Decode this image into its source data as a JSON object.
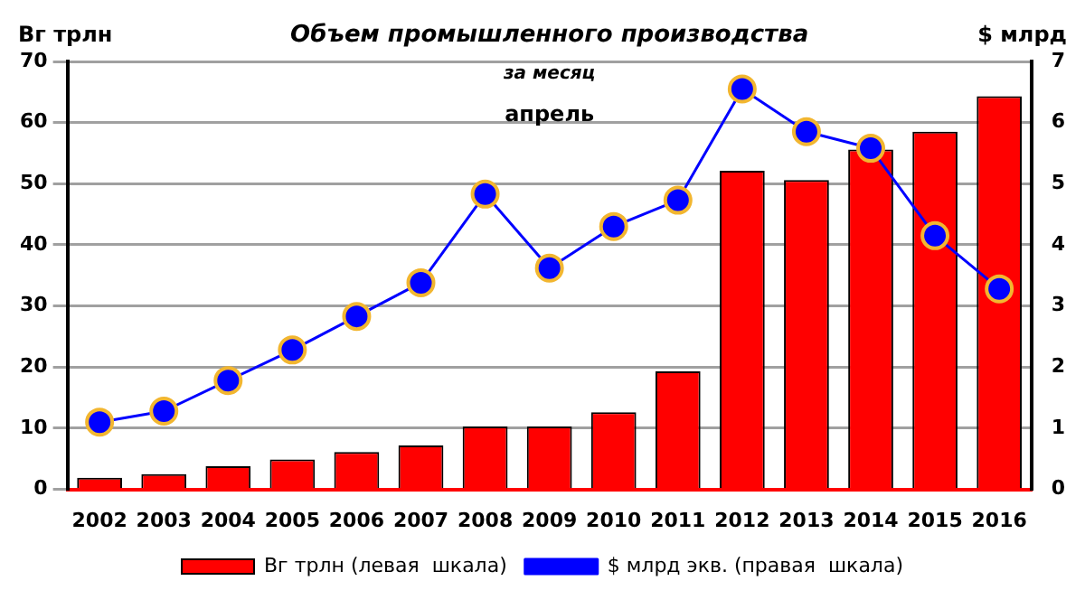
{
  "chart_data": {
    "type": "bar",
    "title": "Объем промышленного производства",
    "subtitle": "за месяц",
    "annotations": [
      "апрель"
    ],
    "ylabel": "Вг трлн",
    "y2label": "$ млрд",
    "categories": [
      "2002",
      "2003",
      "2004",
      "2005",
      "2006",
      "2007",
      "2008",
      "2009",
      "2010",
      "2011",
      "2012",
      "2013",
      "2014",
      "2015",
      "2016"
    ],
    "series": [
      {
        "name": "Вг трлн (левая  шкала)",
        "color": "#ff0000",
        "values": [
          1.9,
          2.5,
          3.8,
          4.9,
          6.1,
          7.2,
          10.3,
          10.3,
          12.6,
          19.3,
          52.1,
          50.6,
          55.6,
          58.5,
          64.3
        ]
      },
      {
        "name": "$ млрд экв. (правая  шкала)",
        "type": "line",
        "axis": "y2",
        "color": "#0000ff",
        "values": [
          1.1,
          1.28,
          1.78,
          2.28,
          2.83,
          3.38,
          4.83,
          3.62,
          4.3,
          4.73,
          6.55,
          5.85,
          5.58,
          4.15,
          3.28
        ]
      }
    ],
    "ylim": [
      0,
      70
    ],
    "yticks": [
      0,
      10,
      20,
      30,
      40,
      50,
      60,
      70
    ],
    "y2lim": [
      0,
      7
    ],
    "y2ticks": [
      0,
      1,
      2,
      3,
      4,
      5,
      6,
      7
    ],
    "grid": "y",
    "legend": "bottom",
    "marker": "circle",
    "line_style": "solid"
  }
}
